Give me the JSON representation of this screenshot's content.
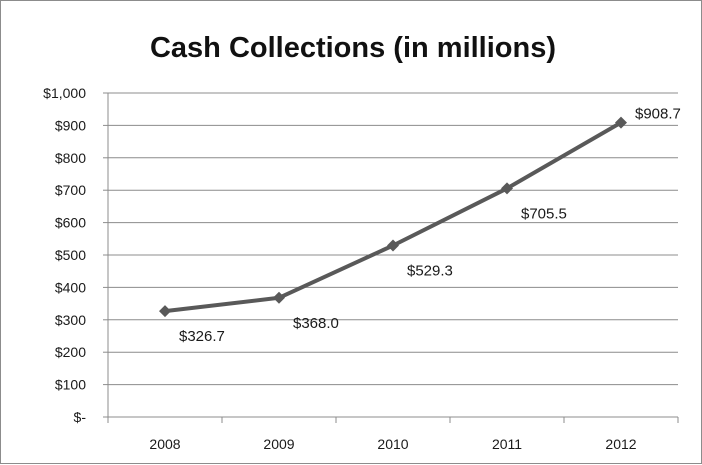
{
  "chart_data": {
    "type": "line",
    "title": "Cash Collections (in millions)",
    "categories": [
      "2008",
      "2009",
      "2010",
      "2011",
      "2012"
    ],
    "series": [
      {
        "values": [
          326.7,
          368.0,
          529.3,
          705.5,
          908.7
        ]
      }
    ],
    "data_labels": [
      "$326.7",
      "$368.0",
      "$529.3",
      "$705.5",
      "$908.7"
    ],
    "y_ticks": [
      0,
      100,
      200,
      300,
      400,
      500,
      600,
      700,
      800,
      900,
      1000
    ],
    "y_tick_labels": [
      "$-",
      "$100",
      "$200",
      "$300",
      "$400",
      "$500",
      "$600",
      "$700",
      "$800",
      "$900",
      "$1,000"
    ],
    "ylim": [
      0,
      1000
    ],
    "grid": true,
    "legend": "none",
    "colors": {
      "line": "#595959",
      "marker": "#595959",
      "grid": "#8c8c8c",
      "axis": "#8c8c8c"
    }
  }
}
